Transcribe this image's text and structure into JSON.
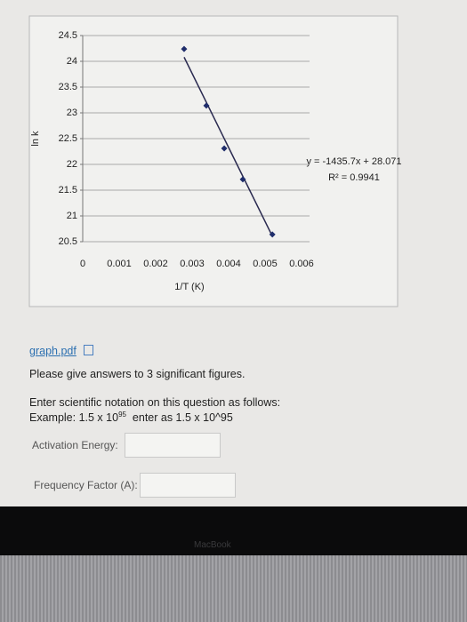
{
  "chart_data": {
    "type": "scatter",
    "ylabel": "ln k",
    "xlabel": "1/T (K)",
    "x": [
      0.00278,
      0.00339,
      0.00388,
      0.00439,
      0.0052
    ],
    "values": [
      24.24,
      23.14,
      22.31,
      21.71,
      20.64
    ],
    "color": "#1f2d6b",
    "xlim": [
      0,
      0.006
    ],
    "xticks": [
      0,
      0.001,
      0.002,
      0.003,
      0.004,
      0.005,
      0.006
    ],
    "ylim": [
      20.5,
      24.5
    ],
    "yticks": [
      20.5,
      21,
      21.5,
      22,
      22.5,
      23,
      23.5,
      24,
      24.5
    ],
    "grid": true,
    "trendline": {
      "equation": "y = -1435.7x + 28.071",
      "r2": "R² = 0.9941",
      "slope": -1435.7,
      "intercept": 28.071,
      "x_range": [
        0.00278,
        0.0052
      ]
    }
  },
  "attachment": {
    "label": "graph.pdf"
  },
  "instruction": "Please give answers to 3 significant figures.",
  "notation": {
    "intro": "Enter scientific notation on this question as follows:",
    "example_prefix": "Example: 1.5 x 10",
    "example_exponent": "95",
    "example_suffix": "enter as 1.5 x 10^95"
  },
  "fields": [
    {
      "label": "Activation Energy:"
    },
    {
      "label": "Frequency Factor (A):"
    }
  ],
  "device": {
    "brand": "MacBook"
  }
}
